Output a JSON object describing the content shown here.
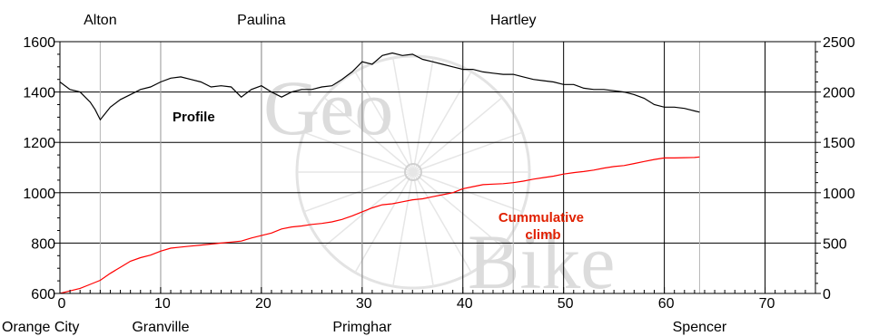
{
  "chart_data": {
    "type": "line",
    "xlim": [
      0,
      75
    ],
    "ylim_left": [
      600,
      1600
    ],
    "ylim_right": [
      0,
      2500
    ],
    "x_ticks": [
      0,
      10,
      20,
      30,
      40,
      50,
      60,
      70
    ],
    "x_tick_labels": [
      "0",
      "10",
      "20",
      "30",
      "40",
      "50",
      "60",
      "70"
    ],
    "y_left_ticks": [
      600,
      800,
      1000,
      1200,
      1400,
      1600
    ],
    "y_left_tick_labels": [
      "600",
      "800",
      "1000",
      "1200",
      "1400",
      "1600"
    ],
    "y_right_ticks": [
      0,
      500,
      1000,
      1500,
      2000,
      2500
    ],
    "y_right_tick_labels": [
      "0",
      "500",
      "1000",
      "1500",
      "2000",
      "2500"
    ],
    "grid": true,
    "top_towns": [
      {
        "name": "Alton",
        "x": 4
      },
      {
        "name": "Paulina",
        "x": 20
      },
      {
        "name": "Hartley",
        "x": 45
      }
    ],
    "bottom_towns": [
      {
        "name": "Orange City",
        "x": 0
      },
      {
        "name": "Granville",
        "x": 10
      },
      {
        "name": "Primghar",
        "x": 30
      },
      {
        "name": "Spencer",
        "x": 63.5
      }
    ],
    "watermark": {
      "top": "Geo",
      "bottom": "Bike"
    },
    "series": [
      {
        "name": "Profile",
        "axis": "left",
        "color": "#000000",
        "x": [
          0,
          1,
          2,
          3,
          3.5,
          4,
          5,
          6,
          7,
          8,
          9,
          10,
          11,
          12,
          13,
          14,
          15,
          16,
          17,
          17.5,
          18,
          19,
          20,
          21,
          22,
          23,
          24,
          25,
          26,
          27,
          28,
          29,
          29.5,
          30,
          31,
          32,
          33,
          34,
          35,
          36,
          37,
          38,
          39,
          40,
          41,
          42,
          43,
          44,
          45,
          46,
          47,
          48,
          49,
          50,
          51,
          52,
          53,
          54,
          55,
          56,
          57,
          58,
          59,
          60,
          61,
          62,
          63,
          63.5
        ],
        "y": [
          1440,
          1410,
          1400,
          1360,
          1330,
          1290,
          1340,
          1370,
          1390,
          1410,
          1420,
          1440,
          1455,
          1460,
          1450,
          1440,
          1420,
          1425,
          1420,
          1400,
          1380,
          1410,
          1425,
          1400,
          1380,
          1400,
          1410,
          1410,
          1420,
          1425,
          1450,
          1480,
          1500,
          1520,
          1510,
          1545,
          1555,
          1545,
          1550,
          1530,
          1520,
          1510,
          1500,
          1490,
          1490,
          1480,
          1475,
          1470,
          1470,
          1460,
          1450,
          1445,
          1440,
          1430,
          1430,
          1415,
          1410,
          1410,
          1405,
          1400,
          1390,
          1375,
          1350,
          1340,
          1340,
          1335,
          1325,
          1320
        ]
      },
      {
        "name": "Cummulative climb",
        "axis": "right",
        "color": "#ff0000",
        "x": [
          0,
          1,
          2,
          3,
          4,
          5,
          6,
          7,
          8,
          9,
          10,
          11,
          12,
          13,
          14,
          15,
          16,
          17,
          18,
          19,
          20,
          21,
          22,
          23,
          24,
          25,
          26,
          27,
          28,
          29,
          30,
          31,
          32,
          33,
          34,
          35,
          36,
          37,
          38,
          39,
          40,
          41,
          42,
          43,
          44,
          45,
          46,
          47,
          48,
          49,
          50,
          51,
          52,
          53,
          54,
          55,
          56,
          57,
          58,
          59,
          60,
          61,
          62,
          63,
          63.5
        ],
        "y": [
          0,
          25,
          50,
          90,
          130,
          200,
          260,
          320,
          355,
          380,
          420,
          450,
          460,
          470,
          480,
          490,
          500,
          510,
          520,
          550,
          575,
          600,
          640,
          660,
          670,
          685,
          695,
          710,
          735,
          770,
          810,
          850,
          880,
          890,
          910,
          930,
          940,
          960,
          980,
          1000,
          1040,
          1060,
          1080,
          1085,
          1090,
          1100,
          1115,
          1135,
          1150,
          1165,
          1185,
          1200,
          1210,
          1225,
          1245,
          1260,
          1270,
          1290,
          1310,
          1330,
          1345,
          1345,
          1348,
          1350,
          1355
        ]
      }
    ]
  }
}
